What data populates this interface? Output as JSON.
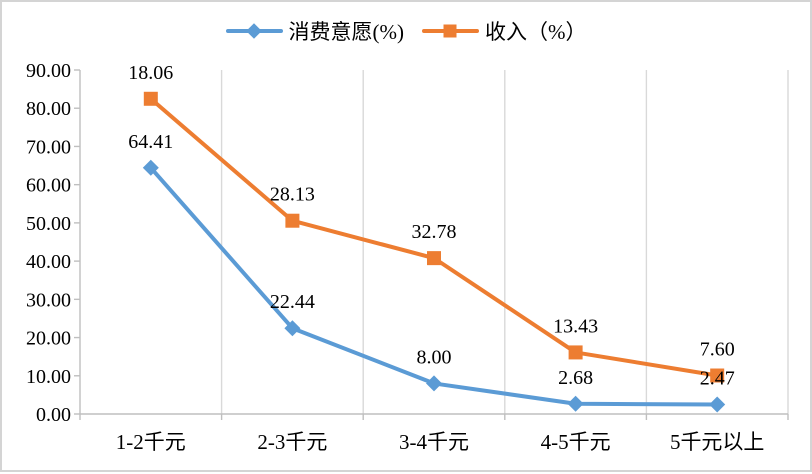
{
  "chart_data": {
    "type": "line",
    "subtype": "stacked-line-with-markers",
    "title": "",
    "xlabel": "",
    "ylabel": "",
    "categories": [
      "1-2千元",
      "2-3千元",
      "3-4千元",
      "4-5千元",
      "5千元以上"
    ],
    "series": [
      {
        "name": "消费意愿(%)",
        "color": "#5B9BD5",
        "marker": "diamond",
        "values": [
          64.41,
          22.44,
          8.0,
          2.68,
          2.47
        ],
        "labels": [
          "64.41",
          "22.44",
          "8.00",
          "2.68",
          "2.47"
        ]
      },
      {
        "name": "收入（%）",
        "color": "#ED7D31",
        "marker": "square",
        "values": [
          18.06,
          28.13,
          32.78,
          13.43,
          7.6
        ],
        "labels": [
          "18.06",
          "28.13",
          "32.78",
          "13.43",
          "7.60"
        ]
      }
    ],
    "stacked": true,
    "ylim": [
      0,
      90
    ],
    "y_tick_step": 10,
    "y_tick_labels": [
      "0.00",
      "10.00",
      "20.00",
      "30.00",
      "40.00",
      "50.00",
      "60.00",
      "70.00",
      "80.00",
      "90.00"
    ],
    "grid": "vertical-category-gridlines-only",
    "legend_position": "top-center",
    "data_labels": "above each marker, two decimals"
  },
  "colors": {
    "series_blue": "#5B9BD5",
    "series_orange": "#ED7D31",
    "gridline": "#D9D9D9",
    "axis": "#BFBFBF",
    "text": "#000000",
    "background": "#FFFFFF",
    "frame_border": "#D4D4D4"
  }
}
